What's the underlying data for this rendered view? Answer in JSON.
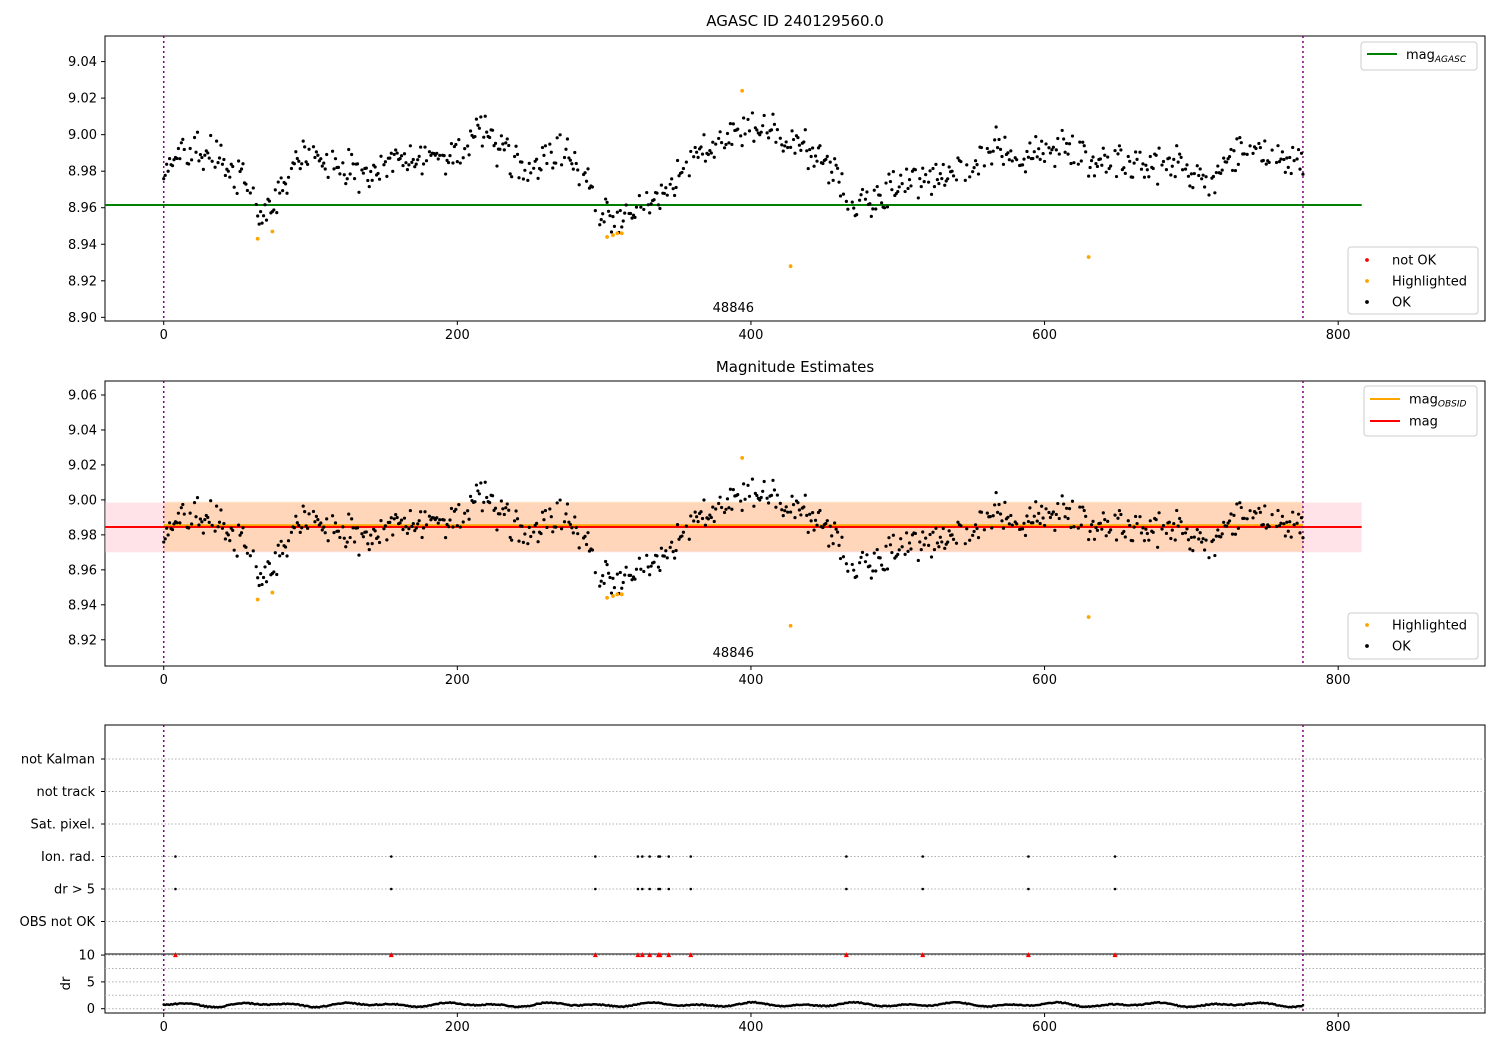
{
  "chart_data": [
    {
      "type": "scatter",
      "title": "AGASC ID 240129560.0",
      "xlabel": "",
      "ylabel": "",
      "xlim": [
        -40,
        900
      ],
      "ylim": [
        8.898,
        9.054
      ],
      "x_ticks": [
        0,
        200,
        400,
        600,
        800
      ],
      "y_ticks": [
        8.9,
        8.92,
        8.94,
        8.96,
        8.98,
        9.0,
        9.02,
        9.04
      ],
      "grid": false,
      "obsid_label": "48846",
      "obsid_label_x": 388,
      "obs_boundaries": [
        0,
        776
      ],
      "ref_line": {
        "name": "mag_AGASC",
        "value": 8.9615,
        "x_range": [
          -40,
          816
        ],
        "color": "#008000"
      },
      "legend_top": {
        "position": "upper-right",
        "entries": [
          {
            "label": "mag",
            "sub": "AGASC",
            "color": "#008000"
          }
        ]
      },
      "legend_bottom": {
        "position": "lower-right",
        "entries": [
          {
            "label": "not OK",
            "color": "#ff0000"
          },
          {
            "label": "Highlighted",
            "color": "#ffa500"
          },
          {
            "label": "OK",
            "color": "#000000"
          }
        ]
      },
      "highlighted_points": [
        [
          64,
          8.943
        ],
        [
          74,
          8.947
        ],
        [
          302,
          8.944
        ],
        [
          306,
          8.945
        ],
        [
          309,
          8.946
        ],
        [
          312,
          8.946
        ],
        [
          394,
          9.024
        ],
        [
          427,
          8.928
        ],
        [
          630,
          8.933
        ]
      ],
      "series": [
        {
          "name": "OK",
          "color": "#000000"
        }
      ]
    },
    {
      "type": "scatter",
      "title": "Magnitude Estimates",
      "xlabel": "",
      "ylabel": "",
      "xlim": [
        -40,
        900
      ],
      "ylim": [
        8.905,
        9.068
      ],
      "x_ticks": [
        0,
        200,
        400,
        600,
        800
      ],
      "y_ticks": [
        8.92,
        8.94,
        8.96,
        8.98,
        9.0,
        9.02,
        9.04,
        9.06
      ],
      "grid": false,
      "obsid_label": "48846",
      "obsid_label_x": 388,
      "obs_boundaries": [
        0,
        776
      ],
      "mag_line": {
        "value": 8.9845,
        "x_range": [
          -40,
          816
        ],
        "color": "#ff0000"
      },
      "mag_band": {
        "low": 8.97,
        "high": 8.9985,
        "x_range": [
          -40,
          816
        ],
        "color": "#ffc0cb"
      },
      "obsid_band": {
        "low": 8.9705,
        "high": 8.999,
        "x_range": [
          0,
          776
        ],
        "color": "#ffa500"
      },
      "obsid_line": {
        "value": 8.9855,
        "x_range": [
          0,
          776
        ],
        "color": "#ffa500"
      },
      "legend_top": {
        "position": "upper-right",
        "entries": [
          {
            "label": "mag",
            "sub": "OBSID",
            "color": "#ffa500"
          },
          {
            "label": "mag",
            "sub": "",
            "color": "#ff0000"
          }
        ]
      },
      "legend_bottom": {
        "position": "lower-right",
        "entries": [
          {
            "label": "Highlighted",
            "color": "#ffa500"
          },
          {
            "label": "OK",
            "color": "#000000"
          }
        ]
      },
      "highlighted_points": [
        [
          64,
          8.943
        ],
        [
          74,
          8.947
        ],
        [
          302,
          8.944
        ],
        [
          306,
          8.945
        ],
        [
          309,
          8.946
        ],
        [
          312,
          8.946
        ],
        [
          394,
          9.024
        ],
        [
          427,
          8.928
        ],
        [
          630,
          8.933
        ]
      ],
      "series": [
        {
          "name": "OK",
          "color": "#000000"
        }
      ]
    },
    {
      "type": "scatter",
      "title": "",
      "xlim": [
        -40,
        900
      ],
      "x_ticks": [
        0,
        200,
        400,
        600,
        800
      ],
      "obs_boundaries": [
        0,
        776
      ],
      "flag_rows": [
        "not Kalman",
        "not track",
        "Sat. pixel.",
        "Ion. rad.",
        "dr > 5",
        "OBS not OK"
      ],
      "flagged_samples": [
        8,
        155,
        294,
        323,
        326,
        331,
        337,
        338,
        344,
        359,
        465,
        517,
        589,
        648
      ],
      "flagged_rows": [
        "Ion. rad.",
        "dr > 5"
      ]
    },
    {
      "type": "scatter",
      "title": "",
      "xlabel": "",
      "ylabel": "dr",
      "xlim": [
        -40,
        900
      ],
      "ylim": [
        -0.8,
        10.2
      ],
      "x_ticks": [
        0,
        200,
        400,
        600,
        800
      ],
      "y_ticks": [
        0,
        5,
        10
      ],
      "y_gridlines": [
        10,
        7.5,
        5,
        2.5,
        0
      ],
      "obs_boundaries": [
        0,
        776
      ],
      "flag_markers": {
        "samples": [
          8,
          155,
          294,
          323,
          326,
          331,
          337,
          338,
          344,
          359,
          465,
          517,
          589,
          648
        ],
        "value": 10,
        "color": "#ff0000",
        "marker": "triangle"
      },
      "series": [
        {
          "name": "dr",
          "color": "#000000",
          "typical_range": [
            0.2,
            1.5
          ]
        }
      ]
    }
  ]
}
